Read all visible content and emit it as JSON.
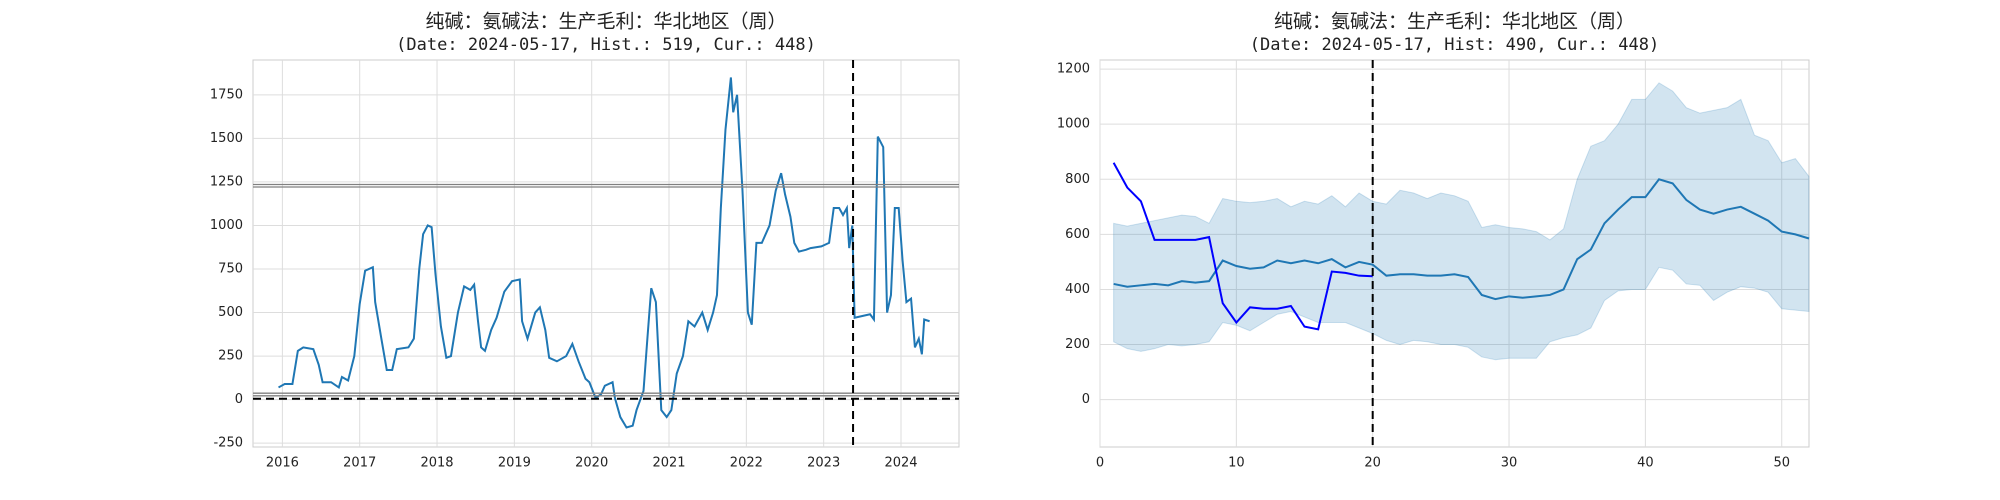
{
  "chart_data": [
    {
      "type": "line",
      "title": "纯碱：氨碱法：生产毛利：华北地区（周）",
      "subtitle": "(Date: 2024-05-17, Hist.: 519, Cur.: 448)",
      "x": [
        2015.95,
        2016.03,
        2016.13,
        2016.2,
        2016.27,
        2016.4,
        2016.47,
        2016.52,
        2016.63,
        2016.73,
        2016.77,
        2016.85,
        2016.93,
        2017.0,
        2017.07,
        2017.17,
        2017.2,
        2017.28,
        2017.35,
        2017.42,
        2017.48,
        2017.63,
        2017.7,
        2017.77,
        2017.82,
        2017.88,
        2017.93,
        2017.98,
        2018.05,
        2018.12,
        2018.18,
        2018.27,
        2018.35,
        2018.43,
        2018.48,
        2018.53,
        2018.57,
        2018.62,
        2018.7,
        2018.77,
        2018.87,
        2018.97,
        2019.07,
        2019.1,
        2019.17,
        2019.27,
        2019.33,
        2019.4,
        2019.45,
        2019.55,
        2019.67,
        2019.75,
        2019.83,
        2019.92,
        2019.97,
        2020.05,
        2020.12,
        2020.17,
        2020.27,
        2020.3,
        2020.37,
        2020.45,
        2020.53,
        2020.58,
        2020.67,
        2020.72,
        2020.77,
        2020.83,
        2020.9,
        2020.97,
        2021.03,
        2021.1,
        2021.18,
        2021.25,
        2021.33,
        2021.43,
        2021.5,
        2021.57,
        2021.62,
        2021.67,
        2021.73,
        2021.8,
        2021.83,
        2021.88,
        2021.95,
        2022.02,
        2022.07,
        2022.13,
        2022.2,
        2022.3,
        2022.38,
        2022.45,
        2022.5,
        2022.57,
        2022.62,
        2022.68,
        2022.77,
        2022.83,
        2022.97,
        2023.07,
        2023.13,
        2023.2,
        2023.25,
        2023.3,
        2023.33,
        2023.37,
        2023.4,
        2023.5,
        2023.6,
        2023.65,
        2023.7,
        2023.77,
        2023.82,
        2023.87,
        2023.92,
        2023.97,
        2024.02,
        2024.07,
        2024.13,
        2024.18,
        2024.23,
        2024.27,
        2024.3,
        2024.37
      ],
      "series": [
        {
          "color": "#1f77b4",
          "values": [
            70,
            90,
            90,
            280,
            300,
            290,
            200,
            100,
            100,
            70,
            130,
            110,
            250,
            550,
            740,
            760,
            560,
            350,
            170,
            170,
            290,
            300,
            350,
            750,
            950,
            1000,
            990,
            720,
            420,
            240,
            250,
            500,
            650,
            630,
            660,
            450,
            300,
            280,
            400,
            470,
            620,
            680,
            690,
            450,
            350,
            500,
            530,
            400,
            240,
            220,
            250,
            320,
            220,
            120,
            100,
            10,
            30,
            80,
            100,
            10,
            -100,
            -160,
            -150,
            -60,
            50,
            350,
            640,
            560,
            -60,
            -100,
            -60,
            150,
            250,
            450,
            420,
            500,
            400,
            500,
            600,
            1100,
            1550,
            1850,
            1650,
            1750,
            1200,
            500,
            430,
            900,
            900,
            1000,
            1200,
            1300,
            1180,
            1050,
            900,
            850,
            860,
            870,
            880,
            900,
            1100,
            1100,
            1060,
            1100,
            870,
            1000,
            470,
            480,
            490,
            460,
            1510,
            1450,
            500,
            600,
            1100,
            1100,
            800,
            560,
            580,
            300,
            350,
            260,
            460,
            450
          ]
        }
      ],
      "hlines": [
        {
          "value": 1235,
          "color": "#808080"
        },
        {
          "value": 1221,
          "color": "#808080"
        },
        {
          "value": 37,
          "color": "#808080"
        },
        {
          "value": 22,
          "color": "#808080"
        },
        {
          "value": 5,
          "color": "#000000",
          "dashed": true
        }
      ],
      "vlines": [
        {
          "value": 2023.38,
          "color": "#000000",
          "dashed": true
        }
      ],
      "xlim": [
        2015.62,
        2024.75
      ],
      "ylim": [
        -272,
        1950
      ],
      "xticks": [
        2016,
        2017,
        2018,
        2019,
        2020,
        2021,
        2022,
        2023,
        2024
      ],
      "yticks": [
        -250,
        0,
        250,
        500,
        750,
        1000,
        1250,
        1500,
        1750
      ],
      "grid": true
    },
    {
      "type": "line",
      "title": "纯碱：氨碱法：生产毛利：华北地区（周）",
      "subtitle": "(Date: 2024-05-17, Hist: 490, Cur.: 448)",
      "x": [
        1,
        2,
        3,
        4,
        5,
        6,
        7,
        8,
        9,
        10,
        11,
        12,
        13,
        14,
        15,
        16,
        17,
        18,
        19,
        20,
        21,
        22,
        23,
        24,
        25,
        26,
        27,
        28,
        29,
        30,
        31,
        32,
        33,
        34,
        35,
        36,
        37,
        38,
        39,
        40,
        41,
        42,
        43,
        44,
        45,
        46,
        47,
        48,
        49,
        50,
        51,
        52
      ],
      "band": {
        "color": "#1f77b4",
        "opacity": 0.2,
        "upper": [
          640,
          630,
          640,
          650,
          660,
          670,
          665,
          640,
          730,
          720,
          715,
          720,
          730,
          700,
          720,
          710,
          740,
          700,
          750,
          720,
          710,
          760,
          750,
          730,
          750,
          740,
          720,
          625,
          635,
          625,
          620,
          610,
          580,
          620,
          800,
          920,
          940,
          1000,
          1090,
          1090,
          1150,
          1120,
          1060,
          1040,
          1050,
          1060,
          1090,
          960,
          940,
          860,
          875,
          810
        ],
        "lower": [
          210,
          185,
          175,
          185,
          200,
          195,
          200,
          210,
          280,
          270,
          250,
          280,
          310,
          320,
          300,
          280,
          280,
          280,
          260,
          240,
          215,
          200,
          215,
          210,
          200,
          200,
          190,
          155,
          145,
          150,
          150,
          150,
          210,
          225,
          235,
          260,
          360,
          395,
          400,
          400,
          480,
          470,
          420,
          415,
          360,
          390,
          410,
          405,
          390,
          330,
          325,
          320
        ]
      },
      "series": [
        {
          "color": "#1f77b4",
          "values": [
            420,
            410,
            415,
            420,
            415,
            430,
            425,
            430,
            505,
            485,
            475,
            480,
            505,
            495,
            505,
            495,
            510,
            480,
            500,
            490,
            450,
            455,
            455,
            450,
            450,
            455,
            445,
            380,
            365,
            375,
            370,
            375,
            380,
            400,
            510,
            545,
            640,
            690,
            735,
            735,
            800,
            785,
            725,
            690,
            675,
            690,
            700,
            675,
            650,
            610,
            600,
            585
          ]
        },
        {
          "color": "#0000ff",
          "values": [
            860,
            770,
            720,
            580,
            580,
            580,
            580,
            590,
            350,
            280,
            335,
            330,
            330,
            340,
            265,
            255,
            465,
            460,
            450,
            448,
            null,
            null,
            null,
            null,
            null,
            null,
            null,
            null,
            null,
            null,
            null,
            null,
            null,
            null,
            null,
            null,
            null,
            null,
            null,
            null,
            null,
            null,
            null,
            null,
            null,
            null,
            null,
            null,
            null,
            null,
            null,
            null
          ]
        }
      ],
      "vlines": [
        {
          "value": 20,
          "color": "#000000",
          "dashed": true
        }
      ],
      "xlim": [
        0,
        52
      ],
      "ylim": [
        -172,
        1233
      ],
      "xticks": [
        0,
        10,
        20,
        30,
        40,
        50
      ],
      "yticks": [
        0,
        200,
        400,
        600,
        800,
        1000,
        1200
      ],
      "grid": true
    }
  ]
}
